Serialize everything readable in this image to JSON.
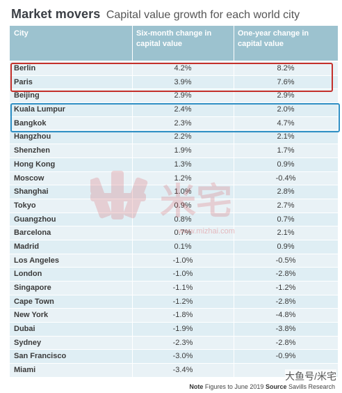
{
  "title": {
    "main": "Market movers",
    "sub": "Capital value growth for each world city"
  },
  "table": {
    "headers": {
      "city": "City",
      "six_month": "Six-month change in capital value",
      "one_year": "One-year change in capital value"
    },
    "rows": [
      {
        "city": "Berlin",
        "six": "4.2%",
        "one": "8.2%"
      },
      {
        "city": "Paris",
        "six": "3.9%",
        "one": "7.6%"
      },
      {
        "city": "Beijing",
        "six": "2.9%",
        "one": "2.9%"
      },
      {
        "city": "Kuala Lumpur",
        "six": "2.4%",
        "one": "2.0%"
      },
      {
        "city": "Bangkok",
        "six": "2.3%",
        "one": "4.7%"
      },
      {
        "city": "Hangzhou",
        "six": "2.2%",
        "one": "2.1%"
      },
      {
        "city": "Shenzhen",
        "six": "1.9%",
        "one": "1.7%"
      },
      {
        "city": "Hong Kong",
        "six": "1.3%",
        "one": "0.9%"
      },
      {
        "city": "Moscow",
        "six": "1.2%",
        "one": "-0.4%"
      },
      {
        "city": "Shanghai",
        "six": "1.0%",
        "one": "2.8%"
      },
      {
        "city": "Tokyo",
        "six": "0.9%",
        "one": "2.7%"
      },
      {
        "city": "Guangzhou",
        "six": "0.8%",
        "one": "0.7%"
      },
      {
        "city": "Barcelona",
        "six": "0.7%",
        "one": "2.1%"
      },
      {
        "city": "Madrid",
        "six": "0.1%",
        "one": "0.9%"
      },
      {
        "city": "Los Angeles",
        "six": "-1.0%",
        "one": "-0.5%"
      },
      {
        "city": "London",
        "six": "-1.0%",
        "one": "-2.8%"
      },
      {
        "city": "Singapore",
        "six": "-1.1%",
        "one": "-1.2%"
      },
      {
        "city": "Cape Town",
        "six": "-1.2%",
        "one": "-2.8%"
      },
      {
        "city": "New York",
        "six": "-1.8%",
        "one": "-4.8%"
      },
      {
        "city": "Dubai",
        "six": "-1.9%",
        "one": "-3.8%"
      },
      {
        "city": "Sydney",
        "six": "-2.3%",
        "one": "-2.8%"
      },
      {
        "city": "San Francisco",
        "six": "-3.0%",
        "one": "-0.9%"
      },
      {
        "city": "Miami",
        "six": "-3.4%",
        "one": ""
      }
    ]
  },
  "highlights": {
    "red_color": "#c4302b",
    "blue_color": "#2f8fc4"
  },
  "footnote": {
    "note_label": "Note",
    "note_text": "Figures to June 2019",
    "source_label": "Source",
    "source_text": "Savills Research"
  },
  "watermark": {
    "url": "www.mizhai.com",
    "brand": "米宅"
  },
  "corner_mark": "大鱼号/米宅"
}
